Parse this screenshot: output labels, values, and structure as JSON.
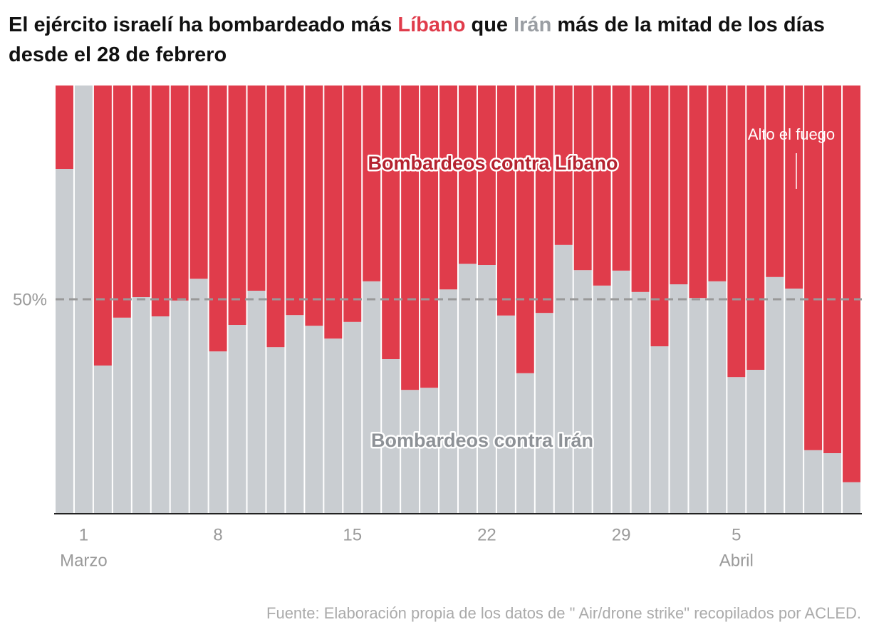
{
  "chart_data": {
    "type": "stacked-bar-100",
    "title_parts": [
      "El ejército israelí ha bombardeado más ",
      "Líbano",
      " que ",
      "Irán",
      " más de la mitad de los días desde el 28 de febrero"
    ],
    "categories": [
      null,
      "1",
      null,
      null,
      null,
      null,
      null,
      null,
      "8",
      null,
      null,
      null,
      null,
      null,
      null,
      "15",
      null,
      null,
      null,
      null,
      null,
      null,
      "22",
      null,
      null,
      null,
      null,
      null,
      null,
      "29",
      null,
      null,
      null,
      null,
      null,
      "5",
      null,
      null,
      null,
      null,
      null,
      null
    ],
    "month_labels": [
      {
        "index": 1,
        "label": "Marzo"
      },
      {
        "index": 35,
        "label": "Abril"
      }
    ],
    "series": [
      {
        "name": "Bombardeos contra Irán",
        "color": "#c9cdd1",
        "label_color": "#8d9196",
        "values": [
          80.5,
          100,
          34.5,
          45.7,
          50.5,
          46,
          49.7,
          54.8,
          37.8,
          44,
          52,
          38.8,
          46.3,
          43.8,
          40.8,
          44.7,
          54.2,
          36,
          28.8,
          29.3,
          52.3,
          58.3,
          58,
          46.2,
          32.7,
          46.8,
          62.7,
          56.8,
          53.2,
          56.7,
          51.7,
          39,
          53.5,
          50.3,
          54.2,
          31.8,
          33.5,
          55.2,
          52.5,
          14.7,
          14,
          7.2
        ]
      },
      {
        "name": "Bombardeos contra Líbano",
        "color": "#e03c4b",
        "label_color": "#b5222f",
        "values": [
          19.5,
          0,
          65.5,
          54.3,
          49.5,
          54,
          50.3,
          45.2,
          62.2,
          56,
          48,
          61.2,
          53.7,
          56.2,
          59.2,
          55.3,
          45.8,
          64,
          71.2,
          70.7,
          47.7,
          41.7,
          42,
          53.8,
          67.3,
          53.2,
          37.3,
          43.2,
          46.8,
          43.3,
          48.3,
          61,
          46.5,
          49.7,
          45.8,
          68.2,
          66.5,
          44.8,
          47.5,
          85.3,
          86,
          92.8
        ]
      }
    ],
    "ylim": [
      0,
      100
    ],
    "yticks": [
      {
        "value": 50,
        "label": "50%"
      }
    ],
    "annotation": "Alto el fuego",
    "source": "Fuente: Elaboración propia de los datos de \" Air/drone strike\" recopilados por ACLED."
  }
}
